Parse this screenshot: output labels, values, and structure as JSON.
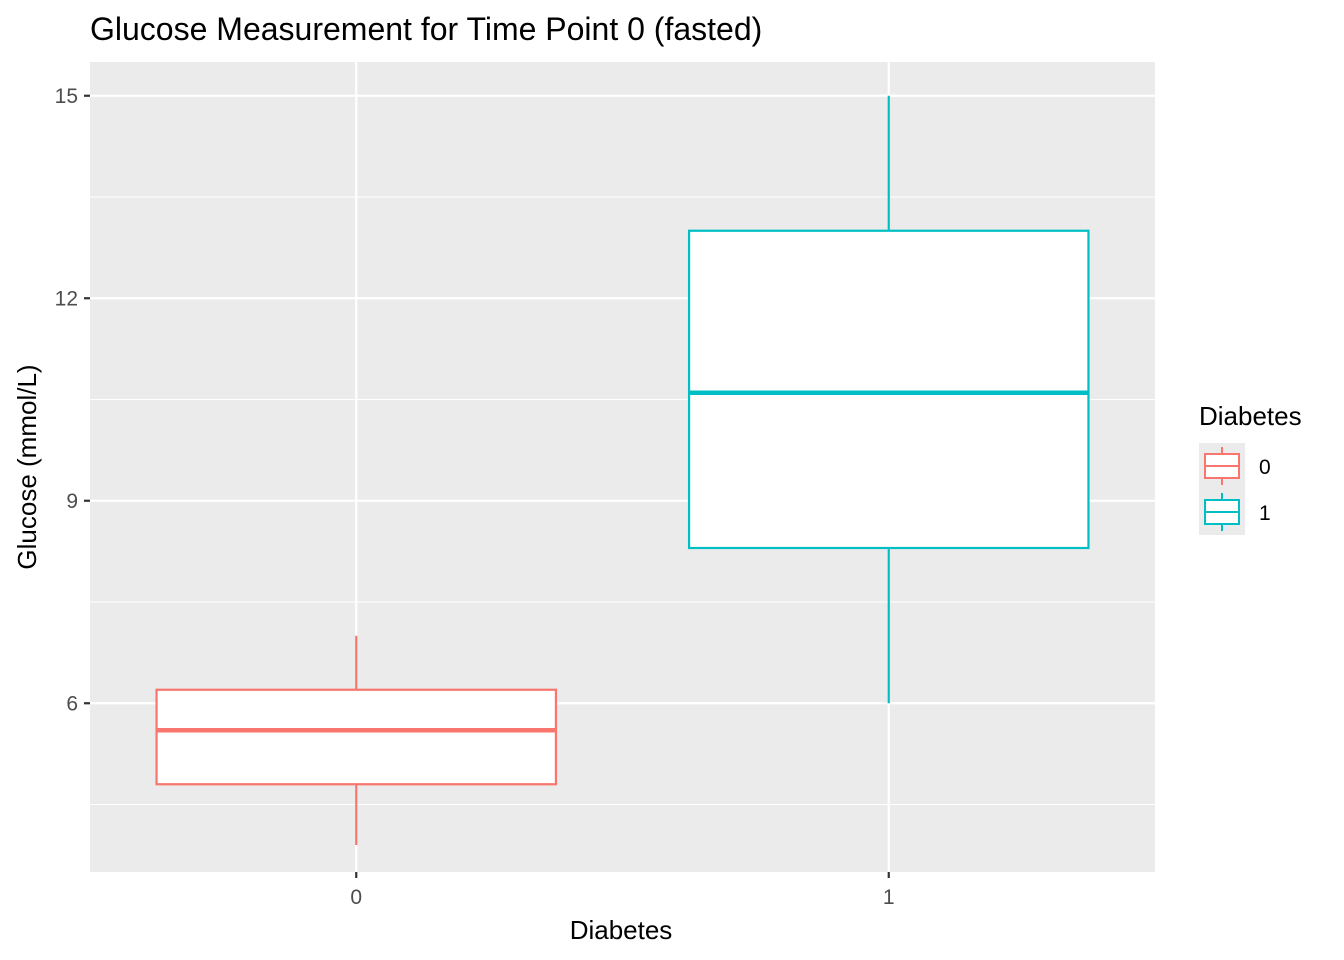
{
  "chart_data": {
    "type": "boxplot",
    "title": "Glucose Measurement for Time Point 0 (fasted)",
    "xlabel": "Diabetes",
    "ylabel": "Glucose (mmol/L)",
    "categories": [
      "0",
      "1"
    ],
    "ylim": [
      3.5,
      15.5
    ],
    "yticks": [
      6,
      9,
      12,
      15
    ],
    "ytick_labels": [
      "6",
      "9",
      "12",
      "15"
    ],
    "y_minor_ticks": [
      4.5,
      7.5,
      10.5,
      13.5
    ],
    "grid": true,
    "boxes": [
      {
        "category": "0",
        "min": 3.9,
        "q1": 4.8,
        "median": 5.6,
        "q3": 6.2,
        "max": 7.0,
        "color": "#F8766D"
      },
      {
        "category": "1",
        "min": 6.0,
        "q1": 8.3,
        "median": 10.6,
        "q3": 13.0,
        "max": 15.0,
        "color": "#00BFC4"
      }
    ],
    "legend": {
      "title": "Diabetes",
      "position": "right",
      "entries": [
        {
          "label": "0",
          "color": "#F8766D"
        },
        {
          "label": "1",
          "color": "#00BFC4"
        }
      ]
    },
    "panel_background": "#EBEBEB"
  }
}
